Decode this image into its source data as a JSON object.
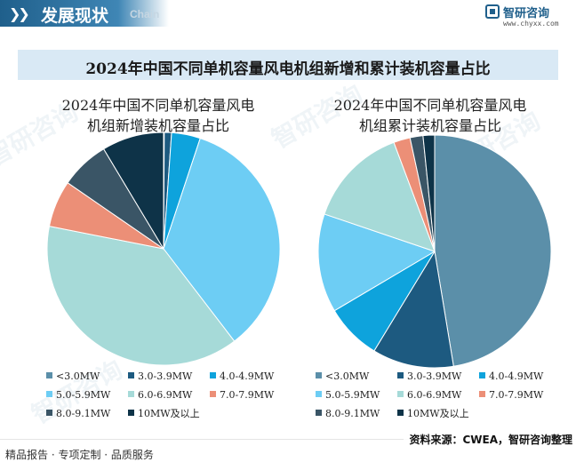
{
  "header": {
    "title": "发展现状",
    "subtitle": "Chain",
    "brand_name": "智研咨询",
    "brand_url": "www.chyxx.com"
  },
  "chart_title": "2024年中国不同单机容量风电机组新增和累计装机容量占比",
  "colors": {
    "header": "#1f5f8b",
    "title_bar": "#d9e9f5"
  },
  "legend_items": [
    {
      "label": "<3.0MW",
      "color": "#5b8fa9"
    },
    {
      "label": "3.0-3.9MW",
      "color": "#1d5a80"
    },
    {
      "label": "4.0-4.9MW",
      "color": "#0ea3dc"
    },
    {
      "label": "5.0-5.9MW",
      "color": "#6dcdf4"
    },
    {
      "label": "6.0-6.9MW",
      "color": "#a6dad8"
    },
    {
      "label": "7.0-7.9MW",
      "color": "#ec8f77"
    },
    {
      "label": "8.0-9.1MW",
      "color": "#3a5566"
    },
    {
      "label": "10MW及以上",
      "color": "#0e3348"
    }
  ],
  "chart_data": [
    {
      "type": "pie",
      "title": "2024年中国不同单机容量风电机组新增装机容量占比",
      "title_lines": [
        "2024年中国不同单机容量风电",
        "机组新增装机容量占比"
      ],
      "categories": [
        "<3.0MW",
        "3.0-3.9MW",
        "4.0-4.9MW",
        "5.0-5.9MW",
        "6.0-6.9MW",
        "7.0-7.9MW",
        "8.0-9.1MW",
        "10MW及以上"
      ],
      "values": [
        0.1,
        1.0,
        4.0,
        34.5,
        38.5,
        6.5,
        6.8,
        8.6
      ]
    },
    {
      "type": "pie",
      "title": "2024年中国不同单机容量风电机组累计装机容量占比",
      "title_lines": [
        "2024年中国不同单机容量风电",
        "机组累计装机容量占比"
      ],
      "categories": [
        "<3.0MW",
        "3.0-3.9MW",
        "4.0-4.9MW",
        "5.0-5.9MW",
        "6.0-6.9MW",
        "7.0-7.9MW",
        "8.0-9.1MW",
        "10MW及以上"
      ],
      "values": [
        47.4,
        11.3,
        7.8,
        13.7,
        14.1,
        2.3,
        1.8,
        1.6
      ]
    }
  ],
  "footer": {
    "left": "精品报告 · 专项定制 · 品质服务",
    "right": "资料来源：CWEA，智研咨询整理"
  },
  "watermark_text": "智研咨询"
}
